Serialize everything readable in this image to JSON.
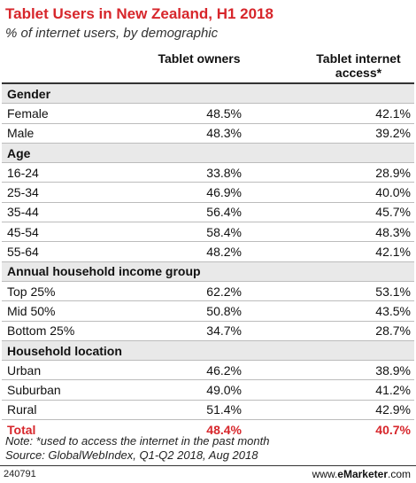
{
  "chart_data": {
    "type": "table",
    "title": "Tablet Users in New Zealand, H1 2018",
    "subtitle": "% of internet users, by demographic",
    "columns": [
      "Tablet owners",
      "Tablet internet access*"
    ],
    "sections": [
      {
        "name": "Gender",
        "rows": [
          {
            "label": "Female",
            "values": [
              "48.5%",
              "42.1%"
            ]
          },
          {
            "label": "Male",
            "values": [
              "48.3%",
              "39.2%"
            ]
          }
        ]
      },
      {
        "name": "Age",
        "rows": [
          {
            "label": "16-24",
            "values": [
              "33.8%",
              "28.9%"
            ]
          },
          {
            "label": "25-34",
            "values": [
              "46.9%",
              "40.0%"
            ]
          },
          {
            "label": "35-44",
            "values": [
              "56.4%",
              "45.7%"
            ]
          },
          {
            "label": "45-54",
            "values": [
              "58.4%",
              "48.3%"
            ]
          },
          {
            "label": "55-64",
            "values": [
              "48.2%",
              "42.1%"
            ]
          }
        ]
      },
      {
        "name": "Annual household income group",
        "rows": [
          {
            "label": "Top 25%",
            "values": [
              "62.2%",
              "53.1%"
            ]
          },
          {
            "label": "Mid 50%",
            "values": [
              "50.8%",
              "43.5%"
            ]
          },
          {
            "label": "Bottom 25%",
            "values": [
              "34.7%",
              "28.7%"
            ]
          }
        ]
      },
      {
        "name": "Household location",
        "rows": [
          {
            "label": "Urban",
            "values": [
              "46.2%",
              "38.9%"
            ]
          },
          {
            "label": "Suburban",
            "values": [
              "49.0%",
              "41.2%"
            ]
          },
          {
            "label": "Rural",
            "values": [
              "51.4%",
              "42.9%"
            ]
          }
        ]
      }
    ],
    "total": {
      "label": "Total",
      "values": [
        "48.4%",
        "40.7%"
      ]
    }
  },
  "footer": {
    "note": "Note: *used to access the internet in the past month",
    "source": "Source: GlobalWebIndex, Q1-Q2 2018, Aug 2018",
    "chart_id": "240791",
    "brand_prefix": "www.",
    "brand_name": "eMarketer",
    "brand_suffix": ".com"
  },
  "colors": {
    "accent": "#d7262b",
    "section_bg": "#e9e9e9"
  }
}
